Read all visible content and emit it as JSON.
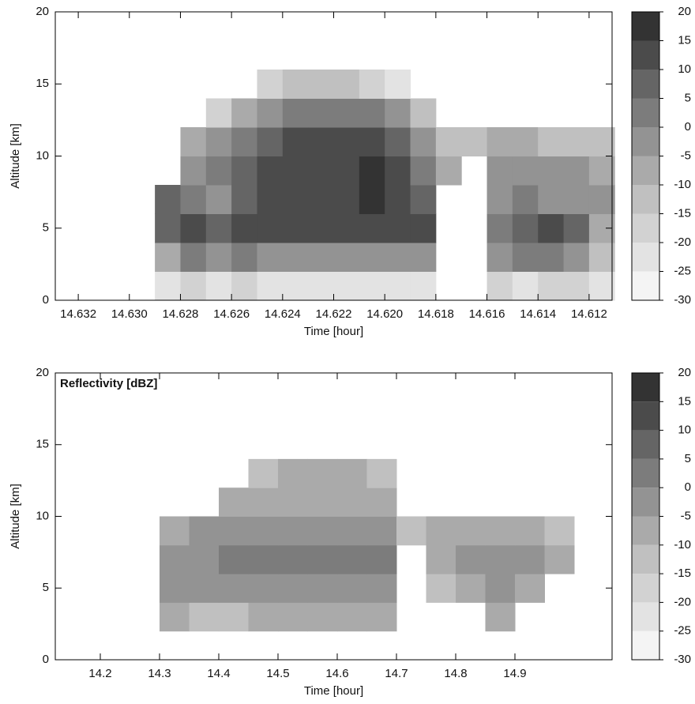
{
  "chart_data": [
    {
      "type": "heatmap",
      "xlabel": "Time [hour]",
      "ylabel": "Altitude [km]",
      "xlim": [
        14.6329,
        14.6111
      ],
      "ylim": [
        0,
        20
      ],
      "xticks": [
        14.632,
        {
          "value": 14.63,
          "label": "14.630"
        },
        14.628,
        14.626,
        14.624,
        14.622,
        {
          "value": 14.62,
          "label": "14.620"
        },
        14.618,
        14.616,
        14.614,
        14.612
      ],
      "yticks": [
        0,
        5,
        10,
        15,
        20
      ],
      "x_bins": [
        14.633,
        14.632,
        14.631,
        14.63,
        14.629,
        14.628,
        14.627,
        14.626,
        14.625,
        14.624,
        14.623,
        14.622,
        14.621,
        14.62,
        14.619,
        14.618,
        14.617,
        14.616,
        14.615,
        14.614,
        14.613,
        14.612,
        14.611
      ],
      "y_bins": [
        0,
        2,
        4,
        6,
        8,
        10,
        12,
        14,
        16
      ],
      "z": [
        [
          null,
          null,
          null,
          null,
          -25,
          -20,
          -25,
          -20,
          -25,
          -25,
          -25,
          -25,
          -25,
          -25,
          -25,
          null,
          null,
          -20,
          -25,
          -20,
          -20,
          -25
        ],
        [
          null,
          null,
          null,
          null,
          -10,
          0,
          -5,
          0,
          -5,
          -5,
          -5,
          -5,
          -5,
          -5,
          -5,
          null,
          null,
          -5,
          0,
          0,
          -5,
          -15
        ],
        [
          null,
          null,
          null,
          null,
          5,
          10,
          5,
          10,
          10,
          10,
          10,
          10,
          10,
          10,
          10,
          null,
          null,
          0,
          5,
          10,
          5,
          -10
        ],
        [
          null,
          null,
          null,
          null,
          5,
          0,
          -5,
          5,
          10,
          10,
          10,
          10,
          15,
          10,
          5,
          null,
          null,
          -5,
          0,
          -5,
          -5,
          -5
        ],
        [
          null,
          null,
          null,
          null,
          null,
          -5,
          0,
          5,
          10,
          10,
          10,
          10,
          15,
          10,
          0,
          -10,
          null,
          -5,
          -5,
          -5,
          -5,
          -10
        ],
        [
          null,
          null,
          null,
          null,
          null,
          -10,
          -5,
          0,
          5,
          10,
          10,
          10,
          10,
          5,
          -5,
          -15,
          -15,
          -10,
          -10,
          -15,
          -15,
          -15
        ],
        [
          null,
          null,
          null,
          null,
          null,
          null,
          -20,
          -10,
          -5,
          0,
          0,
          0,
          0,
          -5,
          -15,
          null,
          null,
          null,
          null,
          null,
          null,
          null
        ],
        [
          null,
          null,
          null,
          null,
          null,
          null,
          null,
          null,
          -20,
          -15,
          -15,
          -15,
          -20,
          -25,
          null,
          null,
          null,
          null,
          null,
          null,
          null,
          null
        ]
      ],
      "colorbar": {
        "levels": [
          -30,
          -25,
          -20,
          -15,
          -10,
          -5,
          0,
          5,
          10,
          15,
          20
        ],
        "colors": [
          "#f4f4f4",
          "#e3e3e3",
          "#d2d2d2",
          "#c0c0c0",
          "#aaaaaa",
          "#939393",
          "#7c7c7c",
          "#656565",
          "#4b4b4b",
          "#333333"
        ]
      }
    },
    {
      "type": "heatmap",
      "xlabel": "Time [hour]",
      "ylabel": "Altitude [km]",
      "annotation": "Reflectivity [dBZ]",
      "xlim": [
        14.124,
        15.064
      ],
      "ylim": [
        0,
        20
      ],
      "xticks": [
        14.2,
        14.3,
        14.4,
        14.5,
        14.6,
        14.7,
        14.8,
        14.9
      ],
      "yticks": [
        0,
        5,
        10,
        15,
        20
      ],
      "x_bins": [
        14.15,
        14.2,
        14.25,
        14.3,
        14.35,
        14.4,
        14.45,
        14.5,
        14.55,
        14.6,
        14.65,
        14.7,
        14.75,
        14.8,
        14.85,
        14.9,
        14.95,
        15.0
      ],
      "y_bins": [
        0,
        2,
        4,
        6,
        8,
        10,
        12,
        14
      ],
      "z": [
        [
          null,
          null,
          null,
          null,
          null,
          null,
          null,
          null,
          null,
          null,
          null,
          null,
          null,
          null,
          null,
          null,
          null
        ],
        [
          null,
          null,
          null,
          -10,
          -15,
          -15,
          -10,
          -10,
          -10,
          -10,
          -10,
          null,
          null,
          null,
          -10,
          null,
          null
        ],
        [
          null,
          null,
          null,
          -5,
          -5,
          -5,
          -5,
          -5,
          -5,
          -5,
          -5,
          null,
          -15,
          -10,
          -5,
          -10,
          null
        ],
        [
          null,
          null,
          null,
          -5,
          -5,
          0,
          0,
          0,
          0,
          0,
          0,
          null,
          -10,
          -5,
          -5,
          -5,
          -10
        ],
        [
          null,
          null,
          null,
          -10,
          -5,
          -5,
          -5,
          -5,
          -5,
          -5,
          -5,
          -15,
          -10,
          -10,
          -10,
          -10,
          -15
        ],
        [
          null,
          null,
          null,
          null,
          null,
          -10,
          -10,
          -10,
          -10,
          -10,
          -10,
          null,
          null,
          null,
          null,
          null,
          null
        ],
        [
          null,
          null,
          null,
          null,
          null,
          null,
          -15,
          -10,
          -10,
          -10,
          -15,
          null,
          null,
          null,
          null,
          null,
          null
        ]
      ],
      "colorbar": {
        "levels": [
          -30,
          -25,
          -20,
          -15,
          -10,
          -5,
          0,
          5,
          10,
          15,
          20
        ],
        "colors": [
          "#f4f4f4",
          "#e3e3e3",
          "#d2d2d2",
          "#c0c0c0",
          "#aaaaaa",
          "#939393",
          "#7c7c7c",
          "#656565",
          "#4b4b4b",
          "#333333"
        ]
      }
    }
  ]
}
